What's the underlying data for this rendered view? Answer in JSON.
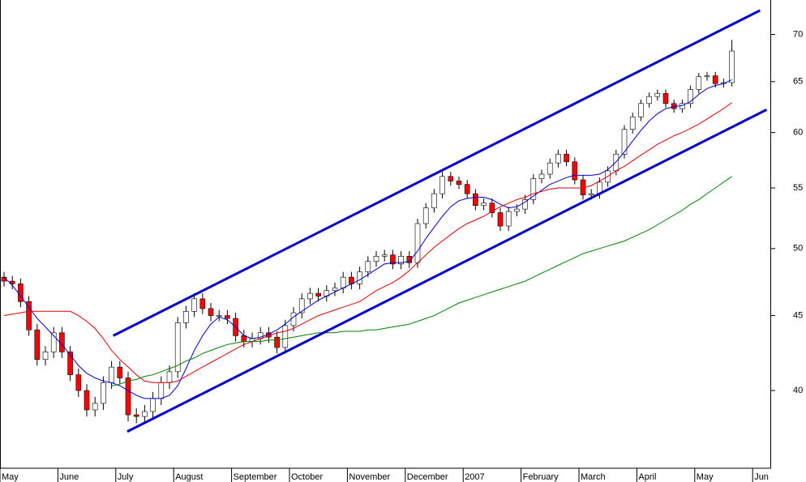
{
  "chart_data": {
    "type": "candlestick",
    "log_scale": true,
    "grid": false,
    "categories": [
      "May",
      null,
      null,
      null,
      null,
      null,
      null,
      "June",
      null,
      null,
      null,
      null,
      null,
      null,
      "July",
      null,
      null,
      null,
      null,
      null,
      null,
      "August",
      null,
      null,
      null,
      null,
      null,
      null,
      "September",
      null,
      null,
      null,
      null,
      null,
      null,
      "October",
      null,
      null,
      null,
      null,
      null,
      null,
      "November",
      null,
      null,
      null,
      null,
      null,
      null,
      "December",
      null,
      null,
      null,
      null,
      null,
      null,
      "2007",
      null,
      null,
      null,
      null,
      null,
      null,
      "February",
      null,
      null,
      null,
      null,
      null,
      null,
      "March",
      null,
      null,
      null,
      null,
      null,
      null,
      "April",
      null,
      null,
      null,
      null,
      null,
      null,
      "May",
      null,
      null,
      null,
      null,
      null,
      null,
      "Jun"
    ],
    "candles": {
      "up_color": "#ffffff",
      "down_color": "#ff0000",
      "edge_color": "#000000",
      "open": [
        47.8,
        47.5,
        47.3,
        46,
        44,
        42,
        42.5,
        43.8,
        42.5,
        41,
        40,
        38.8,
        39.2,
        40.5,
        41.5,
        40.8,
        38.5,
        38.4,
        38.7,
        39.5,
        40.5,
        41.2,
        44.5,
        45.3,
        46.2,
        45.5,
        45,
        45,
        44.8,
        43.6,
        43.2,
        43.4,
        43.8,
        43.5,
        42.8,
        44.3,
        45.2,
        46.2,
        46.6,
        46.4,
        46.8,
        47,
        47.8,
        47.3,
        48.2,
        49,
        49.4,
        49.5,
        48.8,
        49.4,
        48.9,
        52,
        53.3,
        54.5,
        56,
        55.6,
        55.3,
        54.5,
        53.5,
        53.7,
        52.9,
        51.8,
        53,
        53.2,
        54,
        55.8,
        56.2,
        57.2,
        58,
        57.3,
        55.7,
        54.4,
        54.5,
        55.5,
        56.5,
        58,
        60.3,
        61.5,
        62.8,
        63.5,
        63.8,
        62.8,
        62.3,
        62.8,
        64.2,
        65.5,
        65.6,
        64.8,
        64.9,
        null,
        null,
        null
      ],
      "high": [
        48.2,
        47.9,
        47.7,
        46.4,
        44.4,
        42.9,
        44.2,
        44.2,
        42.9,
        41.4,
        40.4,
        39.6,
        40.9,
        41.9,
        41.9,
        41.2,
        38.9,
        39.1,
        39.9,
        40.9,
        41.6,
        44.9,
        45.7,
        46.6,
        46.6,
        45.9,
        45.4,
        45.4,
        45.2,
        44,
        43.8,
        44.2,
        44.2,
        43.9,
        44.7,
        45.6,
        46.6,
        47,
        47,
        47.2,
        47.4,
        48.2,
        48.2,
        48.6,
        49.4,
        49.8,
        49.9,
        49.9,
        49.8,
        49.8,
        52.4,
        53.7,
        54.9,
        56.4,
        56.4,
        56,
        55.7,
        54.9,
        54.1,
        54.1,
        53.3,
        53.4,
        53.6,
        54.4,
        56.2,
        56.6,
        57.6,
        58.4,
        58.4,
        57.7,
        56.1,
        54.9,
        55.9,
        56.9,
        58.4,
        60.7,
        61.9,
        63.2,
        63.9,
        64.2,
        64.2,
        63.2,
        63.2,
        64.6,
        65.9,
        66,
        66,
        65.3,
        69.4,
        null,
        null,
        null
      ],
      "low": [
        47.1,
        46.9,
        45.6,
        43.6,
        41.6,
        41.6,
        42.1,
        42.1,
        40.6,
        39.6,
        38.4,
        38.4,
        38.8,
        40.1,
        40.4,
        38.1,
        38,
        38,
        38.3,
        39.1,
        40.1,
        40.8,
        44.1,
        44.9,
        45.1,
        44.6,
        44.6,
        44.4,
        43.2,
        42.8,
        42.8,
        43,
        43.1,
        42.4,
        42.4,
        43.9,
        44.8,
        45.8,
        46,
        46,
        46.4,
        46.6,
        46.9,
        46.9,
        47.8,
        48.6,
        49,
        48.4,
        48.4,
        48.5,
        48.5,
        51.6,
        52.9,
        54.1,
        55.2,
        54.9,
        54.1,
        53.1,
        53.1,
        52.5,
        51.4,
        51.4,
        52.6,
        52.8,
        53.6,
        55.4,
        55.8,
        56.8,
        56.9,
        55.3,
        54,
        54,
        54.1,
        55.1,
        56.1,
        57.6,
        59.9,
        61.1,
        62.4,
        63.1,
        62.4,
        61.9,
        61.9,
        62.4,
        63.8,
        65.1,
        64.4,
        64.4,
        64.5,
        null,
        null,
        null
      ],
      "close": [
        47.5,
        47.3,
        46,
        44,
        42,
        42.5,
        43.8,
        42.5,
        41,
        40,
        38.8,
        39.2,
        40.5,
        41.5,
        40.8,
        38.5,
        38.4,
        38.7,
        39.5,
        40.5,
        41.2,
        44.5,
        45.3,
        46.2,
        45.5,
        45,
        45,
        44.8,
        43.6,
        43.2,
        43.4,
        43.8,
        43.5,
        42.8,
        44.3,
        45.2,
        46.2,
        46.6,
        46.4,
        46.8,
        47,
        47.8,
        47.3,
        48.2,
        49,
        49.4,
        49.5,
        48.8,
        49.4,
        48.9,
        52,
        53.3,
        54.5,
        56,
        55.6,
        55.3,
        54.5,
        53.5,
        53.7,
        52.9,
        51.8,
        53,
        53.2,
        54,
        55.8,
        56.2,
        57.2,
        58,
        57.3,
        55.7,
        54.4,
        54.5,
        55.5,
        56.5,
        58,
        60.3,
        61.5,
        62.8,
        63.5,
        63.8,
        62.8,
        62.3,
        62.8,
        64.2,
        65.5,
        65.6,
        64.8,
        64.9,
        68.2,
        null,
        null,
        null
      ]
    },
    "series": [
      {
        "color": "#0000cc",
        "values": [
          47.8,
          47.2,
          46.4,
          45.6,
          44.8,
          44.2,
          43.6,
          43,
          42.3,
          41.6,
          41.1,
          40.8,
          40.6,
          40.5,
          40.3,
          40,
          39.7,
          39.5,
          39.5,
          39.5,
          39.7,
          40.3,
          41.4,
          42.6,
          43.6,
          44.4,
          44.9,
          44.7,
          44.2,
          43.6,
          43.4,
          43.5,
          43.7,
          44,
          44.4,
          44.9,
          45.3,
          45.7,
          46.1,
          46.4,
          46.7,
          47,
          47.3,
          47.6,
          48,
          48.4,
          48.8,
          48.9,
          48.9,
          49,
          49.8,
          50.8,
          51.7,
          52.6,
          53.4,
          53.9,
          54.1,
          54.2,
          54.2,
          54,
          53.6,
          53.3,
          53.4,
          53.8,
          54.3,
          54.8,
          55.3,
          55.6,
          55.9,
          56.1,
          56.1,
          56.1,
          56.2,
          56.6,
          57.3,
          58.2,
          59.2,
          60.2,
          61.1,
          61.8,
          62.3,
          62.5,
          62.6,
          63,
          63.7,
          64.3,
          64.6,
          64.8,
          65.2,
          null,
          null,
          null
        ]
      },
      {
        "color": "#dd0000",
        "values": [
          45,
          45.1,
          45.2,
          45.3,
          45.3,
          45.3,
          45.3,
          45.3,
          45.3,
          45,
          44.6,
          44.1,
          43.4,
          42.6,
          42,
          41.5,
          41,
          40.6,
          40.5,
          40.5,
          40.5,
          40.6,
          40.9,
          41.2,
          41.5,
          41.8,
          42.1,
          42.4,
          42.7,
          43,
          43.2,
          43.4,
          43.6,
          43.8,
          43.9,
          44.1,
          44.4,
          44.7,
          45,
          45.2,
          45.4,
          45.6,
          45.8,
          46,
          46.4,
          46.8,
          47.1,
          47.4,
          47.8,
          48.3,
          48.9,
          49.5,
          50.1,
          50.6,
          51.1,
          51.6,
          52,
          52.3,
          52.6,
          53,
          53.4,
          53.7,
          54,
          54.2,
          54.5,
          54.7,
          54.9,
          55,
          55,
          55,
          55,
          55.2,
          55.6,
          56,
          56.5,
          56.9,
          57.4,
          57.9,
          58.4,
          58.9,
          59.3,
          59.7,
          60,
          60.4,
          60.8,
          61.3,
          61.8,
          62.3,
          62.9,
          null,
          null,
          null
        ]
      },
      {
        "color": "#008000",
        "values": [
          null,
          null,
          null,
          null,
          null,
          null,
          null,
          null,
          null,
          null,
          null,
          null,
          null,
          40.3,
          40.4,
          40.6,
          40.7,
          40.9,
          41,
          41.2,
          41.4,
          41.6,
          41.9,
          42.1,
          42.4,
          42.6,
          42.8,
          43,
          43.1,
          43.2,
          43.2,
          43.2,
          43.3,
          43.3,
          43.4,
          43.5,
          43.6,
          43.7,
          43.8,
          43.8,
          43.8,
          43.9,
          43.9,
          43.9,
          44,
          44,
          44.1,
          44.2,
          44.3,
          44.4,
          44.6,
          44.8,
          45,
          45.3,
          45.6,
          45.9,
          46.1,
          46.3,
          46.5,
          46.7,
          46.9,
          47.1,
          47.3,
          47.5,
          47.8,
          48.1,
          48.4,
          48.7,
          49,
          49.3,
          49.6,
          49.8,
          50,
          50.2,
          50.4,
          50.6,
          50.9,
          51.2,
          51.5,
          51.9,
          52.3,
          52.7,
          53.1,
          53.6,
          54,
          54.5,
          55,
          55.5,
          56,
          null,
          null,
          null
        ]
      }
    ],
    "trendlines": [
      {
        "color": "#0000cc",
        "start": [
          13.2,
          43.6
        ],
        "end": [
          91.4,
          72.7
        ]
      },
      {
        "color": "#0000cc",
        "start": [
          14.9,
          37.5
        ],
        "end": [
          92.2,
          62.2
        ]
      }
    ],
    "ylim": [
      35.4,
      73.9
    ],
    "yticks": [
      40,
      45,
      50,
      55,
      60,
      65,
      70
    ]
  }
}
